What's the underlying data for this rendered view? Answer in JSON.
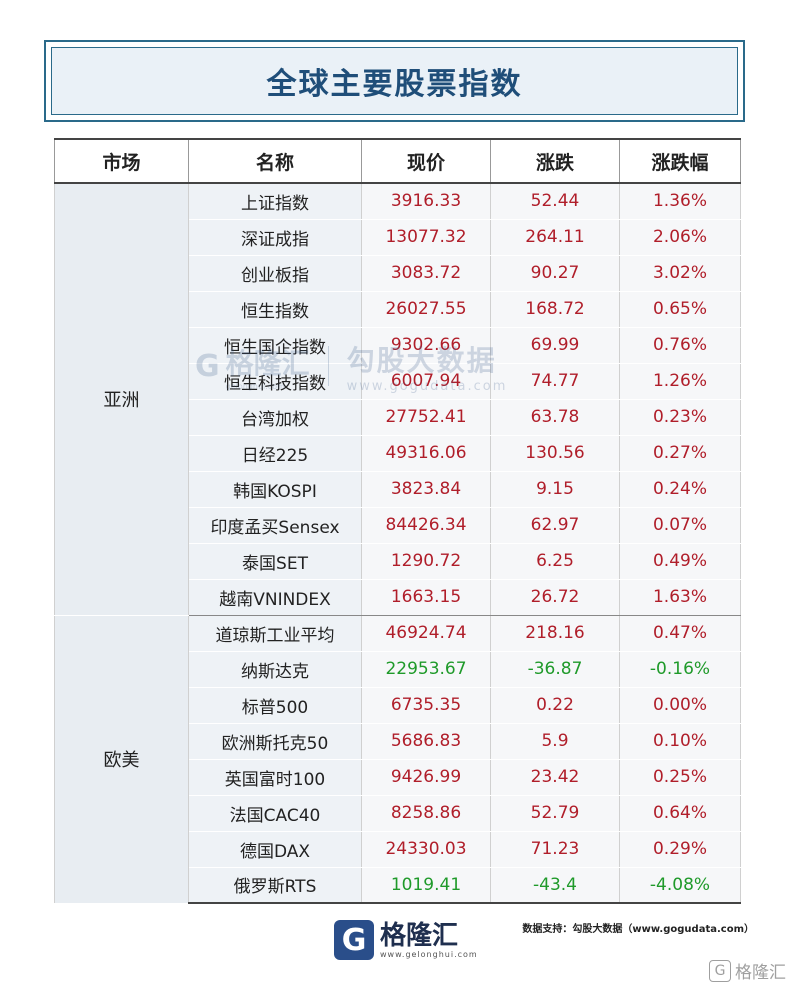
{
  "title": "全球主要股票指数",
  "headers": [
    "市场",
    "名称",
    "现价",
    "涨跌",
    "涨跌幅"
  ],
  "groups": [
    {
      "market": "亚洲",
      "rows": [
        {
          "name": "上证指数",
          "price": "3916.33",
          "change": "52.44",
          "pct": "1.36%",
          "dir": "up"
        },
        {
          "name": "深证成指",
          "price": "13077.32",
          "change": "264.11",
          "pct": "2.06%",
          "dir": "up"
        },
        {
          "name": "创业板指",
          "price": "3083.72",
          "change": "90.27",
          "pct": "3.02%",
          "dir": "up"
        },
        {
          "name": "恒生指数",
          "price": "26027.55",
          "change": "168.72",
          "pct": "0.65%",
          "dir": "up"
        },
        {
          "name": "恒生国企指数",
          "price": "9302.66",
          "change": "69.99",
          "pct": "0.76%",
          "dir": "up"
        },
        {
          "name": "恒生科技指数",
          "price": "6007.94",
          "change": "74.77",
          "pct": "1.26%",
          "dir": "up"
        },
        {
          "name": "台湾加权",
          "price": "27752.41",
          "change": "63.78",
          "pct": "0.23%",
          "dir": "up"
        },
        {
          "name": "日经225",
          "price": "49316.06",
          "change": "130.56",
          "pct": "0.27%",
          "dir": "up"
        },
        {
          "name": "韩国KOSPI",
          "price": "3823.84",
          "change": "9.15",
          "pct": "0.24%",
          "dir": "up"
        },
        {
          "name": "印度孟买Sensex",
          "price": "84426.34",
          "change": "62.97",
          "pct": "0.07%",
          "dir": "up"
        },
        {
          "name": "泰国SET",
          "price": "1290.72",
          "change": "6.25",
          "pct": "0.49%",
          "dir": "up"
        },
        {
          "name": "越南VNINDEX",
          "price": "1663.15",
          "change": "26.72",
          "pct": "1.63%",
          "dir": "up"
        }
      ]
    },
    {
      "market": "欧美",
      "rows": [
        {
          "name": "道琼斯工业平均",
          "price": "46924.74",
          "change": "218.16",
          "pct": "0.47%",
          "dir": "up"
        },
        {
          "name": "纳斯达克",
          "price": "22953.67",
          "change": "-36.87",
          "pct": "-0.16%",
          "dir": "down"
        },
        {
          "name": "标普500",
          "price": "6735.35",
          "change": "0.22",
          "pct": "0.00%",
          "dir": "up"
        },
        {
          "name": "欧洲斯托克50",
          "price": "5686.83",
          "change": "5.9",
          "pct": "0.10%",
          "dir": "up"
        },
        {
          "name": "英国富时100",
          "price": "9426.99",
          "change": "23.42",
          "pct": "0.25%",
          "dir": "up"
        },
        {
          "name": "法国CAC40",
          "price": "8258.86",
          "change": "52.79",
          "pct": "0.64%",
          "dir": "up"
        },
        {
          "name": "德国DAX",
          "price": "24330.03",
          "change": "71.23",
          "pct": "0.29%",
          "dir": "up"
        },
        {
          "name": "俄罗斯RTS",
          "price": "1019.41",
          "change": "-43.4",
          "pct": "-4.08%",
          "dir": "down"
        }
      ]
    }
  ],
  "watermark": {
    "logo": "G",
    "brand": "格隆汇",
    "brand_url": "gelonghui.com",
    "cn": "勾股大数据",
    "url": "www.gogudata.com"
  },
  "source": "数据支持：勾股大数据（www.gogudata.com）",
  "footer": {
    "logo": "G",
    "brand": "格隆汇",
    "url": "www.gelonghui.com"
  },
  "corner": {
    "logo": "G",
    "text": "格隆汇"
  },
  "colors": {
    "up": "#b01e2a",
    "down": "#1f9a2a",
    "title": "#1f4e79"
  }
}
